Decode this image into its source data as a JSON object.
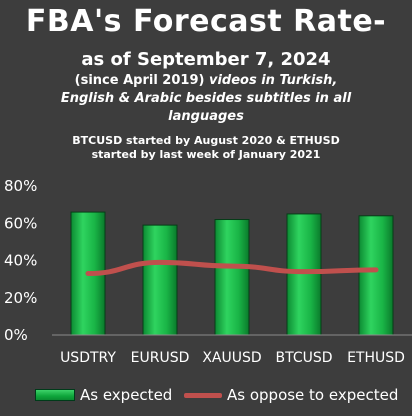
{
  "header": {
    "title": "FBA's Forecast Rate-",
    "subtitle": "as of September 7, 2024",
    "note_prefix": "(since April 2019)",
    "note_italic_line1": "videos in Turkish,",
    "note_italic_line2": "English & Arabic besides subtitles in all",
    "note_italic_line3": "languages",
    "footnote_line1": "BTCUSD started by August 2020 & ETHUSD",
    "footnote_line2": "started by last week of January 2021"
  },
  "chart_data": {
    "type": "bar",
    "categories": [
      "USDTRY",
      "EURUSD",
      "XAUUSD",
      "BTCUSD",
      "ETHUSD"
    ],
    "series": [
      {
        "name": "As expected",
        "type": "bar",
        "values": [
          66,
          59,
          62,
          65,
          64
        ],
        "color": "#18b445"
      },
      {
        "name": "As oppose to expected",
        "type": "line",
        "values": [
          33,
          39,
          37,
          34,
          35
        ],
        "color": "#c0504d"
      }
    ],
    "y_ticks": [
      "80%",
      "60%",
      "40%",
      "20%",
      "0%"
    ],
    "ylim": [
      0,
      80
    ],
    "grid": false,
    "legend": "bottom"
  }
}
